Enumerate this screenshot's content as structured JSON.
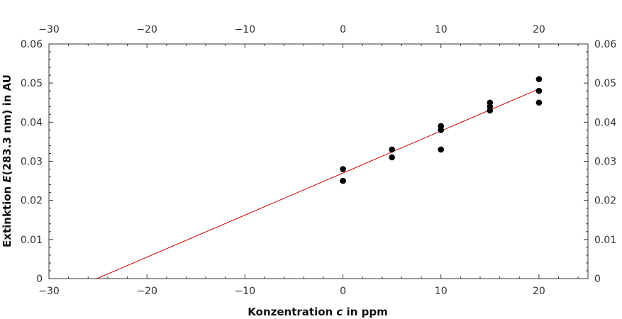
{
  "chart_data": {
    "type": "scatter",
    "xlabel_parts": [
      "Konzentration ",
      "c",
      " in ppm"
    ],
    "ylabel_parts": [
      "Extinktion ",
      "E",
      "(283.3 nm) in AU"
    ],
    "xlim": [
      -30,
      25
    ],
    "ylim": [
      0,
      0.06
    ],
    "x_ticks": [
      -30,
      -20,
      -10,
      0,
      10,
      20
    ],
    "x_tick_labels": [
      "−30",
      "−20",
      "−10",
      "0",
      "10",
      "20"
    ],
    "y_ticks": [
      0,
      0.01,
      0.02,
      0.03,
      0.04,
      0.05,
      0.06
    ],
    "y_tick_labels": [
      "0",
      "0.01",
      "0.02",
      "0.03",
      "0.04",
      "0.05",
      "0.06"
    ],
    "points": [
      {
        "x": 0,
        "y": 0.028
      },
      {
        "x": 0,
        "y": 0.025
      },
      {
        "x": 5,
        "y": 0.033
      },
      {
        "x": 5,
        "y": 0.031
      },
      {
        "x": 10,
        "y": 0.039
      },
      {
        "x": 10,
        "y": 0.038
      },
      {
        "x": 10,
        "y": 0.033
      },
      {
        "x": 15,
        "y": 0.045
      },
      {
        "x": 15,
        "y": 0.044
      },
      {
        "x": 15,
        "y": 0.043
      },
      {
        "x": 20,
        "y": 0.051
      },
      {
        "x": 20,
        "y": 0.048
      },
      {
        "x": 20,
        "y": 0.045
      }
    ],
    "fit_line": {
      "x": [
        -25.1,
        20
      ],
      "y": [
        0,
        0.0485
      ]
    },
    "grid": false,
    "colors": {
      "points": "#000000",
      "fit_line": "#cc0000",
      "axes": "#333333"
    }
  }
}
